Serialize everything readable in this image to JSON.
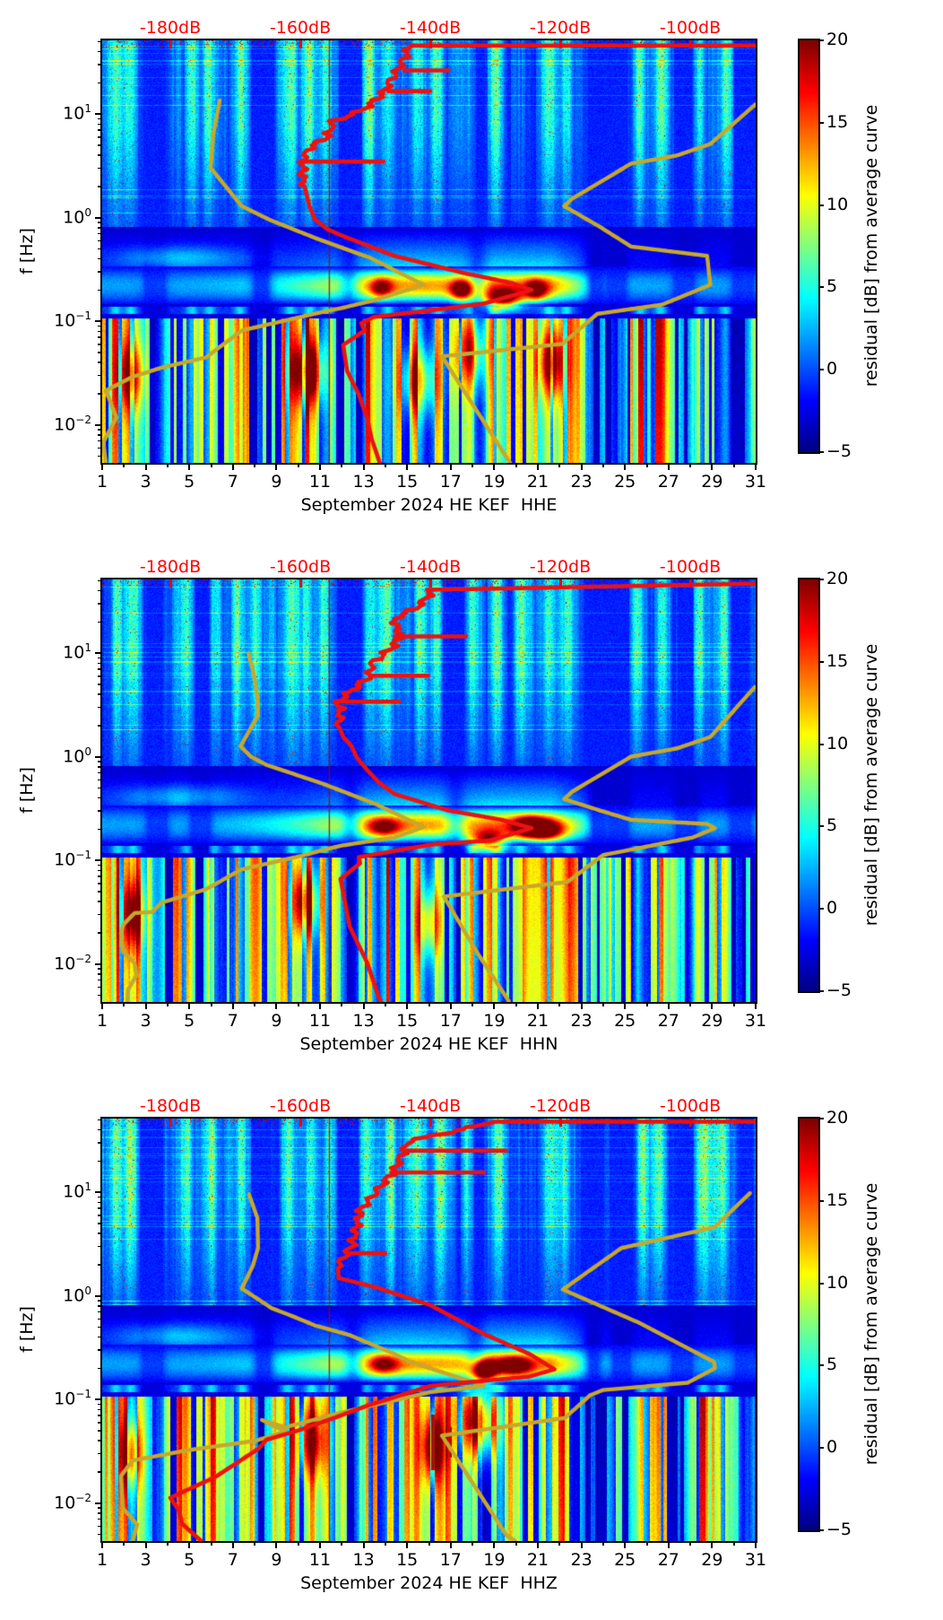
{
  "colors": {
    "background": "#ffffff",
    "axis": "#000000",
    "accent_red_labels": "#ff0000",
    "median_curve_red": "#ee1111",
    "noise_model_yellow": "#c6a82c",
    "gap_line_dark_red": "#8a0f0a"
  },
  "axes": {
    "ylabel": "f [Hz]",
    "y_tick_exponents": [
      1,
      0,
      -1,
      -2
    ],
    "x_tick_labels": [
      "1",
      "3",
      "5",
      "7",
      "9",
      "11",
      "13",
      "15",
      "17",
      "19",
      "21",
      "23",
      "25",
      "27",
      "29",
      "31"
    ],
    "x_tick_days": [
      1,
      3,
      5,
      7,
      9,
      11,
      13,
      15,
      17,
      19,
      21,
      23,
      25,
      27,
      29,
      31
    ],
    "x_minor_days": [
      2,
      4,
      6,
      8,
      10,
      12,
      14,
      16,
      18,
      20,
      22,
      24,
      26,
      28,
      30
    ],
    "top_labels": [
      "-180dB",
      "-160dB",
      "-140dB",
      "-120dB",
      "-100dB"
    ],
    "top_label_values_db": [
      -180,
      -160,
      -140,
      -120,
      -100
    ]
  },
  "colorbar": {
    "label": "residual [dB] from average curve",
    "tick_labels": [
      "20",
      "15",
      "10",
      "5",
      "0",
      "−5"
    ],
    "tick_values": [
      20,
      15,
      10,
      5,
      0,
      -5
    ],
    "vmin": -5,
    "vmax": 20,
    "colormap": "jet"
  },
  "panels": [
    {
      "id": "hhe",
      "channel": "HHE",
      "xlabel": "September 2024 HE KEF  HHE"
    },
    {
      "id": "hhn",
      "channel": "HHN",
      "xlabel": "September 2024 HE KEF  HHN"
    },
    {
      "id": "hhz",
      "channel": "HHZ",
      "xlabel": "September 2024 HE KEF  HHZ"
    }
  ],
  "chart_data": [
    {
      "type": "heatmap",
      "subtype": "spectrogram-residual",
      "channel": "HHE",
      "xlabel": "September 2024 HE KEF  HHE",
      "ylabel": "f [Hz]",
      "x_range_days": [
        1,
        31
      ],
      "y_range_hz": [
        0.0042,
        51
      ],
      "y_scale": "log",
      "top_db_axis_values": [
        -180,
        -160,
        -140,
        -120,
        -100
      ],
      "colorbar_range_db": [
        -5,
        20
      ],
      "seed": 11,
      "gap_line_day": 11.4,
      "red_curve_db_log10f": [
        [
          -90,
          1.66
        ],
        [
          -143,
          1.66
        ],
        [
          -144.4,
          1.49
        ],
        [
          -145.8,
          1.35
        ],
        [
          -147.2,
          1.21
        ],
        [
          -149,
          1.1
        ],
        [
          -151,
          1.02
        ],
        [
          -154.9,
          0.93
        ],
        [
          -155.7,
          0.79
        ],
        [
          -158.6,
          0.67
        ],
        [
          -159.6,
          0.56
        ],
        [
          -159.6,
          0.37
        ],
        [
          -158.6,
          0.11
        ],
        [
          -157.7,
          -0.02
        ],
        [
          -155.9,
          -0.11
        ],
        [
          -153.8,
          -0.17
        ],
        [
          -145.5,
          -0.37
        ],
        [
          -134.5,
          -0.54
        ],
        [
          -127.6,
          -0.63
        ],
        [
          -124.4,
          -0.7
        ],
        [
          -131.7,
          -0.83
        ],
        [
          -141.8,
          -0.91
        ],
        [
          -148.7,
          -0.96
        ],
        [
          -150.6,
          -1.02
        ],
        [
          -150.1,
          -1.09
        ],
        [
          -153.4,
          -1.23
        ],
        [
          -152.8,
          -1.48
        ],
        [
          -151,
          -1.71
        ],
        [
          -149.7,
          -1.94
        ],
        [
          -149,
          -2.14
        ],
        [
          -147.7,
          -2.38
        ]
      ],
      "red_spurs": [
        {
          "lf": 1.42,
          "db_from": -144,
          "db_to": -137.2
        },
        {
          "lf": 1.22,
          "db_from": -146.5,
          "db_to": -140
        },
        {
          "lf": 0.54,
          "db_from": -159.6,
          "db_to": -147.2
        }
      ],
      "yellow_low_db_log10f": [
        [
          -172.4,
          1.13
        ],
        [
          -173.4,
          0.8
        ],
        [
          -173.8,
          0.48
        ],
        [
          -169,
          0.11
        ],
        [
          -164.8,
          -0.02
        ],
        [
          -157.6,
          -0.2
        ],
        [
          -149.2,
          -0.39
        ],
        [
          -141,
          -0.65
        ],
        [
          -148.7,
          -0.8
        ],
        [
          -153.4,
          -0.87
        ],
        [
          -157.9,
          -0.93
        ],
        [
          -164.8,
          -1.03
        ],
        [
          -169,
          -1.09
        ],
        [
          -174.5,
          -1.35
        ],
        [
          -181.4,
          -1.45
        ],
        [
          -185.9,
          -1.54
        ],
        [
          -189.9,
          -1.67
        ],
        [
          -188.3,
          -1.93
        ],
        [
          -190.3,
          -2.17
        ],
        [
          -189.9,
          -2.38
        ]
      ],
      "yellow_high_db_log10f": [
        [
          -90,
          1.09
        ],
        [
          -96.9,
          0.71
        ],
        [
          -102,
          0.6
        ],
        [
          -109.1,
          0.52
        ],
        [
          -118.2,
          0.18
        ],
        [
          -119.4,
          0.11
        ],
        [
          -113.9,
          -0.09
        ],
        [
          -109.1,
          -0.28
        ],
        [
          -97.4,
          -0.37
        ],
        [
          -96.9,
          -0.65
        ],
        [
          -104.3,
          -0.84
        ],
        [
          -114.3,
          -0.93
        ],
        [
          -119.7,
          -1.22
        ],
        [
          -138.2,
          -1.34
        ],
        [
          -132.7,
          -1.88
        ],
        [
          -127.6,
          -2.38
        ]
      ],
      "hot_spots_day_hz_db": [
        [
          17.5,
          0.2,
          15
        ],
        [
          19.4,
          0.165,
          19
        ],
        [
          20.9,
          0.2,
          14
        ],
        [
          13.8,
          0.21,
          11
        ],
        [
          10.4,
          0.033,
          13
        ],
        [
          2.3,
          0.03,
          11
        ],
        [
          21.6,
          0.04,
          13
        ],
        [
          15.5,
          0.027,
          10
        ],
        [
          17.9,
          0.05,
          10
        ]
      ],
      "bright_column_days": [
        1.6,
        2.3,
        5.1,
        5.9,
        7.3,
        9.6,
        10.5,
        11.3,
        13.2,
        14.1,
        15.5,
        16.4,
        17.9,
        19.0,
        21.5,
        22.3,
        25.7,
        26.6,
        28.4,
        29.6
      ],
      "dark_column_days": [
        3.4,
        8.3,
        12.3,
        18.2,
        23.6,
        24.6,
        27.7,
        30.4
      ]
    },
    {
      "type": "heatmap",
      "subtype": "spectrogram-residual",
      "channel": "HHN",
      "xlabel": "September 2024 HE KEF  HHN",
      "ylabel": "f [Hz]",
      "x_range_days": [
        1,
        31
      ],
      "y_range_hz": [
        0.0042,
        51
      ],
      "y_scale": "log",
      "top_db_axis_values": [
        -180,
        -160,
        -140,
        -120,
        -100
      ],
      "colorbar_range_db": [
        -5,
        20
      ],
      "seed": 23,
      "gap_line_day": 11.4,
      "red_curve_db_log10f": [
        [
          -90,
          1.67
        ],
        [
          -139.7,
          1.61
        ],
        [
          -141,
          1.5
        ],
        [
          -142.3,
          1.43
        ],
        [
          -145.1,
          1.35
        ],
        [
          -145.5,
          1.27
        ],
        [
          -144.4,
          1.18
        ],
        [
          -145.9,
          1.05
        ],
        [
          -149,
          0.9
        ],
        [
          -149.4,
          0.77
        ],
        [
          -154.2,
          0.53
        ],
        [
          -153.8,
          0.42
        ],
        [
          -154.1,
          0.31
        ],
        [
          -153.4,
          0.19
        ],
        [
          -152.1,
          0.1
        ],
        [
          -151.3,
          -0.01
        ],
        [
          -149.7,
          -0.13
        ],
        [
          -147.9,
          -0.25
        ],
        [
          -145.5,
          -0.36
        ],
        [
          -137.2,
          -0.52
        ],
        [
          -129,
          -0.61
        ],
        [
          -124.4,
          -0.69
        ],
        [
          -130.8,
          -0.81
        ],
        [
          -140,
          -0.85
        ],
        [
          -151,
          -0.97
        ],
        [
          -150.8,
          -1.03
        ],
        [
          -153.8,
          -1.18
        ],
        [
          -152.4,
          -1.64
        ],
        [
          -149.7,
          -1.99
        ],
        [
          -148,
          -2.31
        ],
        [
          -147.6,
          -2.37
        ]
      ],
      "red_spurs": [
        {
          "lf": 1.16,
          "db_from": -145.5,
          "db_to": -134.5
        },
        {
          "lf": 0.78,
          "db_from": -149.3,
          "db_to": -140.3
        },
        {
          "lf": 0.53,
          "db_from": -154.2,
          "db_to": -144.8
        }
      ],
      "yellow_low_db_log10f": [
        [
          -168,
          1.0
        ],
        [
          -167.2,
          0.81
        ],
        [
          -166.6,
          0.58
        ],
        [
          -166.5,
          0.4
        ],
        [
          -169.2,
          0.1
        ],
        [
          -167.6,
          0.0
        ],
        [
          -165.2,
          -0.08
        ],
        [
          -162.3,
          -0.14
        ],
        [
          -156.6,
          -0.26
        ],
        [
          -148.3,
          -0.46
        ],
        [
          -141,
          -0.68
        ],
        [
          -145.5,
          -0.78
        ],
        [
          -153.8,
          -0.86
        ],
        [
          -160.7,
          -0.97
        ],
        [
          -169.1,
          -1.09
        ],
        [
          -174.5,
          -1.28
        ],
        [
          -181.4,
          -1.41
        ],
        [
          -182.8,
          -1.5
        ],
        [
          -185.5,
          -1.51
        ],
        [
          -187.2,
          -1.62
        ],
        [
          -187.6,
          -1.7
        ],
        [
          -187.3,
          -1.88
        ],
        [
          -185.5,
          -1.99
        ],
        [
          -185.2,
          -2.11
        ],
        [
          -186.5,
          -2.25
        ],
        [
          -186.6,
          -2.36
        ]
      ],
      "yellow_high_db_log10f": [
        [
          -90.1,
          0.67
        ],
        [
          -96.9,
          0.19
        ],
        [
          -102,
          0.08
        ],
        [
          -109.1,
          0.0
        ],
        [
          -118.2,
          -0.34
        ],
        [
          -119.4,
          -0.41
        ],
        [
          -113.9,
          -0.52
        ],
        [
          -109.1,
          -0.61
        ],
        [
          -97.4,
          -0.65
        ],
        [
          -96.2,
          -0.69
        ],
        [
          -99.6,
          -0.78
        ],
        [
          -110.1,
          -0.91
        ],
        [
          -113.4,
          -0.95
        ],
        [
          -118.9,
          -1.21
        ],
        [
          -137.9,
          -1.35
        ],
        [
          -132.7,
          -1.9
        ],
        [
          -127.9,
          -2.36
        ]
      ],
      "hot_spots_day_hz_db": [
        [
          20.6,
          0.21,
          18
        ],
        [
          18.7,
          0.155,
          17
        ],
        [
          13.9,
          0.21,
          11
        ],
        [
          10.3,
          0.04,
          13
        ],
        [
          2.4,
          0.03,
          11
        ],
        [
          21.4,
          0.19,
          13
        ],
        [
          16.0,
          0.025,
          10
        ]
      ],
      "bright_column_days": [
        1.7,
        2.4,
        4.9,
        6.1,
        7.2,
        8.0,
        9.7,
        10.4,
        11.2,
        13.3,
        14.0,
        15.6,
        16.3,
        18.0,
        19.1,
        20.2,
        21.5,
        22.4,
        25.6,
        26.7,
        28.3,
        29.5
      ],
      "dark_column_days": [
        3.5,
        5.5,
        12.4,
        17.2,
        23.7,
        24.7,
        27.8,
        30.3
      ]
    },
    {
      "type": "heatmap",
      "subtype": "spectrogram-residual",
      "channel": "HHZ",
      "xlabel": "September 2024 HE KEF  HHZ",
      "ylabel": "f [Hz]",
      "x_range_days": [
        1,
        31
      ],
      "y_range_hz": [
        0.0042,
        51
      ],
      "y_scale": "log",
      "top_db_axis_values": [
        -180,
        -160,
        -140,
        -120,
        -100
      ],
      "colorbar_range_db": [
        -5,
        20
      ],
      "seed": 37,
      "gap_line_day": 11.4,
      "red_curve_db_log10f": [
        [
          -90,
          1.68
        ],
        [
          -129.9,
          1.68
        ],
        [
          -143.4,
          1.49
        ],
        [
          -145.5,
          1.21
        ],
        [
          -150.8,
          0.82
        ],
        [
          -152,
          0.49
        ],
        [
          -154.2,
          0.29
        ],
        [
          -154.1,
          0.17
        ],
        [
          -148.3,
          0.08
        ],
        [
          -140,
          -0.09
        ],
        [
          -131.7,
          -0.37
        ],
        [
          -124.8,
          -0.56
        ],
        [
          -120.9,
          -0.71
        ],
        [
          -124.8,
          -0.78
        ],
        [
          -140,
          -0.87
        ],
        [
          -150.1,
          -1.07
        ],
        [
          -154.8,
          -1.18
        ],
        [
          -160.3,
          -1.3
        ],
        [
          -165.2,
          -1.39
        ],
        [
          -166.5,
          -1.48
        ],
        [
          -173.1,
          -1.75
        ],
        [
          -180,
          -1.95
        ],
        [
          -178.6,
          -2.08
        ],
        [
          -178.2,
          -2.2
        ],
        [
          -175.2,
          -2.37
        ]
      ],
      "red_spurs": [
        {
          "lf": 1.4,
          "db_from": -144,
          "db_to": -128.3
        },
        {
          "lf": 1.19,
          "db_from": -146,
          "db_to": -131.7
        },
        {
          "lf": 0.41,
          "db_from": -152.5,
          "db_to": -146.9
        }
      ],
      "yellow_low_db_log10f": [
        [
          -167.9,
          0.98
        ],
        [
          -166.6,
          0.75
        ],
        [
          -166.5,
          0.46
        ],
        [
          -167.3,
          0.29
        ],
        [
          -169,
          0.07
        ],
        [
          -164.4,
          -0.12
        ],
        [
          -161.1,
          -0.2
        ],
        [
          -157.6,
          -0.29
        ],
        [
          -152.4,
          -0.38
        ],
        [
          -145.9,
          -0.55
        ],
        [
          -143,
          -0.64
        ],
        [
          -131.7,
          -0.87
        ],
        [
          -140,
          -0.93
        ],
        [
          -153.8,
          -1.13
        ],
        [
          -162.3,
          -1.27
        ],
        [
          -165.9,
          -1.2
        ],
        [
          -162.3,
          -1.31
        ],
        [
          -166.9,
          -1.4
        ],
        [
          -177.2,
          -1.49
        ],
        [
          -185.8,
          -1.59
        ],
        [
          -187.6,
          -1.74
        ],
        [
          -187.3,
          -2.05
        ],
        [
          -185.1,
          -2.21
        ],
        [
          -185.8,
          -2.37
        ]
      ],
      "yellow_high_db_log10f": [
        [
          -90.8,
          0.99
        ],
        [
          -96.3,
          0.66
        ],
        [
          -110.6,
          0.46
        ],
        [
          -119.6,
          0.06
        ],
        [
          -107.9,
          -0.26
        ],
        [
          -96.3,
          -0.64
        ],
        [
          -96.2,
          -0.7
        ],
        [
          -100.4,
          -0.84
        ],
        [
          -113.4,
          -0.91
        ],
        [
          -115.4,
          -0.96
        ],
        [
          -119.3,
          -1.18
        ],
        [
          -138.2,
          -1.35
        ],
        [
          -128.3,
          -2.31
        ],
        [
          -126.9,
          -2.37
        ]
      ],
      "hot_spots_day_hz_db": [
        [
          18.5,
          0.19,
          19
        ],
        [
          19.9,
          0.21,
          14
        ],
        [
          18.3,
          0.062,
          16
        ],
        [
          16.15,
          0.035,
          13
        ],
        [
          13.9,
          0.22,
          10
        ],
        [
          2.3,
          0.03,
          11
        ],
        [
          10.6,
          0.04,
          11
        ]
      ],
      "bright_column_days": [
        1.6,
        2.3,
        4.8,
        6.0,
        7.4,
        9.5,
        10.6,
        11.4,
        13.1,
        14.2,
        15.4,
        16.5,
        17.8,
        19.2,
        21.6,
        22.2,
        25.8,
        26.5,
        28.6,
        29.4
      ],
      "dark_column_days": [
        3.3,
        8.4,
        12.5,
        18.1,
        23.5,
        24.8,
        27.6,
        30.5
      ]
    }
  ]
}
